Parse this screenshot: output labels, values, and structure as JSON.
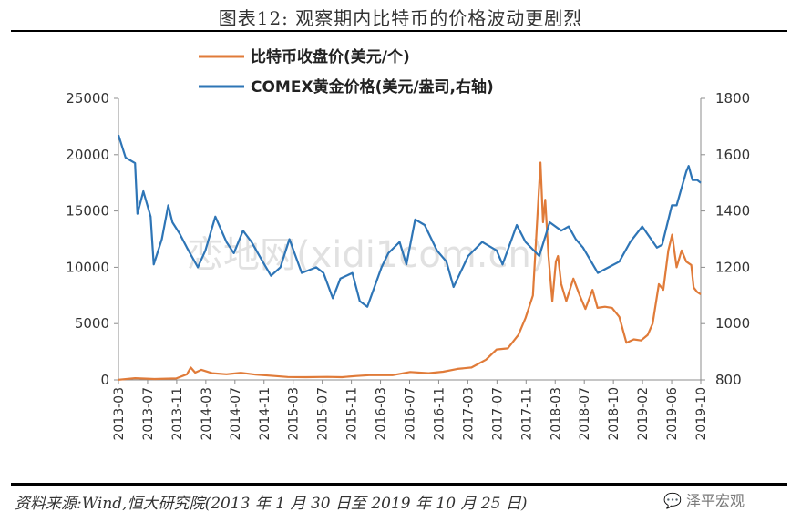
{
  "header": {
    "title": "图表12:      观察期内比特币的价格波动更剧烈"
  },
  "footer": {
    "source": "资料来源:Wind,恒大研究院(2013 年 1 月 30 日至 2019 年 10 月 25 日)",
    "logo_text": "泽平宏观"
  },
  "watermark": "恋地网(xidi1com.cn)",
  "chart_data": {
    "type": "line",
    "title": "",
    "xlabel": "",
    "ylabel": "",
    "left_axis": {
      "ylim": [
        0,
        25000
      ],
      "ticks": [
        "0",
        "5000",
        "10000",
        "15000",
        "20000",
        "25000"
      ]
    },
    "right_axis": {
      "ylim": [
        800,
        1800
      ],
      "ticks": [
        "800",
        "1000",
        "1200",
        "1400",
        "1600",
        "1800"
      ]
    },
    "x_ticks": [
      "2013-03",
      "2013-07",
      "2013-11",
      "2014-03",
      "2014-07",
      "2014-11",
      "2015-03",
      "2015-07",
      "2015-11",
      "2016-03",
      "2016-07",
      "2016-11",
      "2017-03",
      "2017-07",
      "2017-11",
      "2018-03",
      "2018-07",
      "2018-10",
      "2019-02",
      "2019-06",
      "2019-10"
    ],
    "legend": {
      "placement": "top-center"
    },
    "grid": false,
    "series": [
      {
        "name": "比特币收盘价(美元/个)",
        "axis": "left",
        "color": "#E07B39",
        "x": [
          "2013-01-30",
          "2013-04-10",
          "2013-07-01",
          "2013-10-01",
          "2013-11-15",
          "2013-12-01",
          "2013-12-20",
          "2014-01-15",
          "2014-03-01",
          "2014-05-01",
          "2014-07-01",
          "2014-09-01",
          "2014-11-01",
          "2015-01-15",
          "2015-04-01",
          "2015-07-01",
          "2015-09-01",
          "2015-11-01",
          "2016-01-01",
          "2016-04-01",
          "2016-06-15",
          "2016-09-01",
          "2016-11-01",
          "2017-01-01",
          "2017-03-01",
          "2017-05-01",
          "2017-06-15",
          "2017-08-01",
          "2017-09-15",
          "2017-10-15",
          "2017-11-15",
          "2017-12-17",
          "2017-12-28",
          "2018-01-06",
          "2018-01-20",
          "2018-02-05",
          "2018-02-20",
          "2018-03-01",
          "2018-03-15",
          "2018-04-05",
          "2018-05-05",
          "2018-06-01",
          "2018-06-25",
          "2018-07-25",
          "2018-08-15",
          "2018-09-15",
          "2018-10-15",
          "2018-11-15",
          "2018-12-15",
          "2019-01-15",
          "2019-02-15",
          "2019-03-15",
          "2019-04-05",
          "2019-05-01",
          "2019-05-20",
          "2019-06-10",
          "2019-06-26",
          "2019-07-15",
          "2019-08-05",
          "2019-08-25",
          "2019-09-15",
          "2019-09-25",
          "2019-10-10",
          "2019-10-25"
        ],
        "values": [
          20,
          150,
          80,
          130,
          500,
          1100,
          650,
          900,
          600,
          500,
          630,
          470,
          380,
          260,
          240,
          270,
          240,
          350,
          430,
          420,
          700,
          600,
          730,
          980,
          1100,
          1800,
          2700,
          2800,
          4000,
          5500,
          7500,
          19300,
          14000,
          16000,
          11000,
          7000,
          10500,
          11000,
          8500,
          7000,
          9000,
          7500,
          6300,
          8000,
          6400,
          6500,
          6400,
          5600,
          3300,
          3600,
          3500,
          4000,
          5000,
          8500,
          8000,
          11500,
          12900,
          10000,
          11500,
          10500,
          10200,
          8200,
          7800,
          7600
        ]
      },
      {
        "name": "COMEX黄金价格(美元/盎司,右轴)",
        "axis": "right",
        "color": "#2E75B6",
        "x": [
          "2013-01-30",
          "2013-03-01",
          "2013-04-10",
          "2013-04-20",
          "2013-05-15",
          "2013-06-15",
          "2013-06-28",
          "2013-08-01",
          "2013-08-28",
          "2013-09-15",
          "2013-10-15",
          "2013-11-15",
          "2013-12-31",
          "2014-02-01",
          "2014-03-15",
          "2014-05-01",
          "2014-06-01",
          "2014-07-10",
          "2014-08-15",
          "2014-10-01",
          "2014-11-05",
          "2014-12-15",
          "2015-01-22",
          "2015-03-15",
          "2015-05-15",
          "2015-06-15",
          "2015-07-24",
          "2015-08-25",
          "2015-10-15",
          "2015-11-15",
          "2015-12-17",
          "2016-02-15",
          "2016-03-15",
          "2016-05-01",
          "2016-05-30",
          "2016-07-06",
          "2016-08-15",
          "2016-10-06",
          "2016-11-15",
          "2016-12-15",
          "2017-02-15",
          "2017-04-15",
          "2017-06-15",
          "2017-07-10",
          "2017-09-08",
          "2017-10-15",
          "2017-12-12",
          "2018-01-25",
          "2018-03-15",
          "2018-04-15",
          "2018-05-15",
          "2018-06-15",
          "2018-08-16",
          "2018-10-01",
          "2018-11-15",
          "2018-12-31",
          "2019-02-20",
          "2019-04-23",
          "2019-05-15",
          "2019-06-25",
          "2019-07-15",
          "2019-08-25",
          "2019-09-04",
          "2019-09-20",
          "2019-10-10",
          "2019-10-25"
        ],
        "values": [
          1670,
          1590,
          1570,
          1390,
          1470,
          1380,
          1210,
          1300,
          1420,
          1360,
          1320,
          1270,
          1200,
          1260,
          1380,
          1290,
          1250,
          1330,
          1290,
          1220,
          1170,
          1200,
          1300,
          1180,
          1200,
          1180,
          1090,
          1160,
          1180,
          1080,
          1060,
          1200,
          1250,
          1290,
          1210,
          1370,
          1350,
          1260,
          1220,
          1130,
          1240,
          1290,
          1260,
          1210,
          1350,
          1290,
          1240,
          1360,
          1330,
          1345,
          1300,
          1270,
          1180,
          1200,
          1220,
          1290,
          1345,
          1270,
          1280,
          1420,
          1420,
          1540,
          1560,
          1510,
          1510,
          1500
        ]
      }
    ]
  }
}
